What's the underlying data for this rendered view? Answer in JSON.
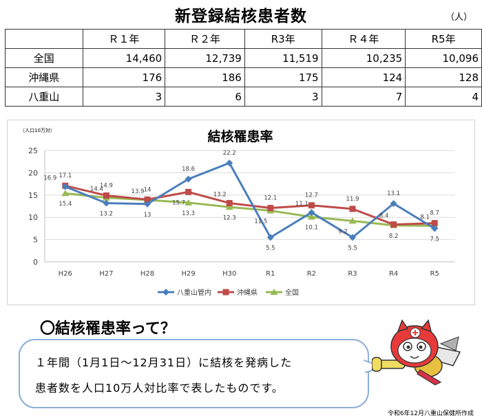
{
  "title": "新登録結核患者数",
  "unit": "（人）",
  "table": {
    "headers": [
      "",
      "Ｒ１年",
      "Ｒ２年",
      "R3年",
      "Ｒ４年",
      "R5年"
    ],
    "rows": [
      {
        "label": "全国",
        "values": [
          "14,460",
          "12,739",
          "11,519",
          "10,235",
          "10,096"
        ]
      },
      {
        "label": "沖縄県",
        "values": [
          "176",
          "186",
          "175",
          "124",
          "128"
        ]
      },
      {
        "label": "八重山",
        "values": [
          "3",
          "6",
          "3",
          "7",
          "4"
        ]
      }
    ]
  },
  "chart_data": {
    "type": "line",
    "title": "結核罹患率",
    "ylabel": "（人口10万対）",
    "categories": [
      "H26",
      "H27",
      "H28",
      "H29",
      "H30",
      "R1",
      "R2",
      "R3",
      "R4",
      "R5"
    ],
    "ylim": [
      0,
      25
    ],
    "yticks": [
      "0",
      "5",
      "10",
      "15",
      "20",
      "25"
    ],
    "legend_position": "bottom",
    "series": [
      {
        "name": "八重山管内",
        "color": "#4a7ebb",
        "marker": "diamond",
        "values": [
          16.9,
          13.2,
          13,
          18.6,
          22.2,
          5.5,
          11.1,
          5.5,
          13.1,
          7.5
        ],
        "labels": [
          "16.9",
          "13.2",
          "13",
          "18.6",
          "22.2",
          "5.5",
          "11.1",
          "5.5",
          "13.1",
          "7.5"
        ]
      },
      {
        "name": "沖縄県",
        "color": "#be4b48",
        "marker": "square",
        "values": [
          17.1,
          14.9,
          14,
          15.7,
          13.2,
          12.1,
          12.7,
          11.9,
          8.4,
          8.7
        ],
        "labels": [
          "17.1",
          "14.9",
          "14",
          "15.7",
          "13.2",
          "12.1",
          "12.7",
          "11.9",
          "8.4",
          "8.7"
        ]
      },
      {
        "name": "全国",
        "color": "#98b954",
        "marker": "triangle",
        "values": [
          15.4,
          14.4,
          13.9,
          13.3,
          12.3,
          11.5,
          10.1,
          9.2,
          8.2,
          8.1
        ],
        "labels": [
          "15.4",
          "14.4",
          "13.9",
          "13.3",
          "12.3",
          "11.5",
          "10.1",
          "9.2",
          "8.2",
          "8.1"
        ]
      }
    ]
  },
  "explanation": {
    "heading": "〇結核罹患率って？",
    "line1": "１年間（1月1日～12月31日）に結核を発病した",
    "line2": "患者数を人口10万人対比率で表したものです。"
  },
  "credit": "令和6年12月八重山保健所作成"
}
